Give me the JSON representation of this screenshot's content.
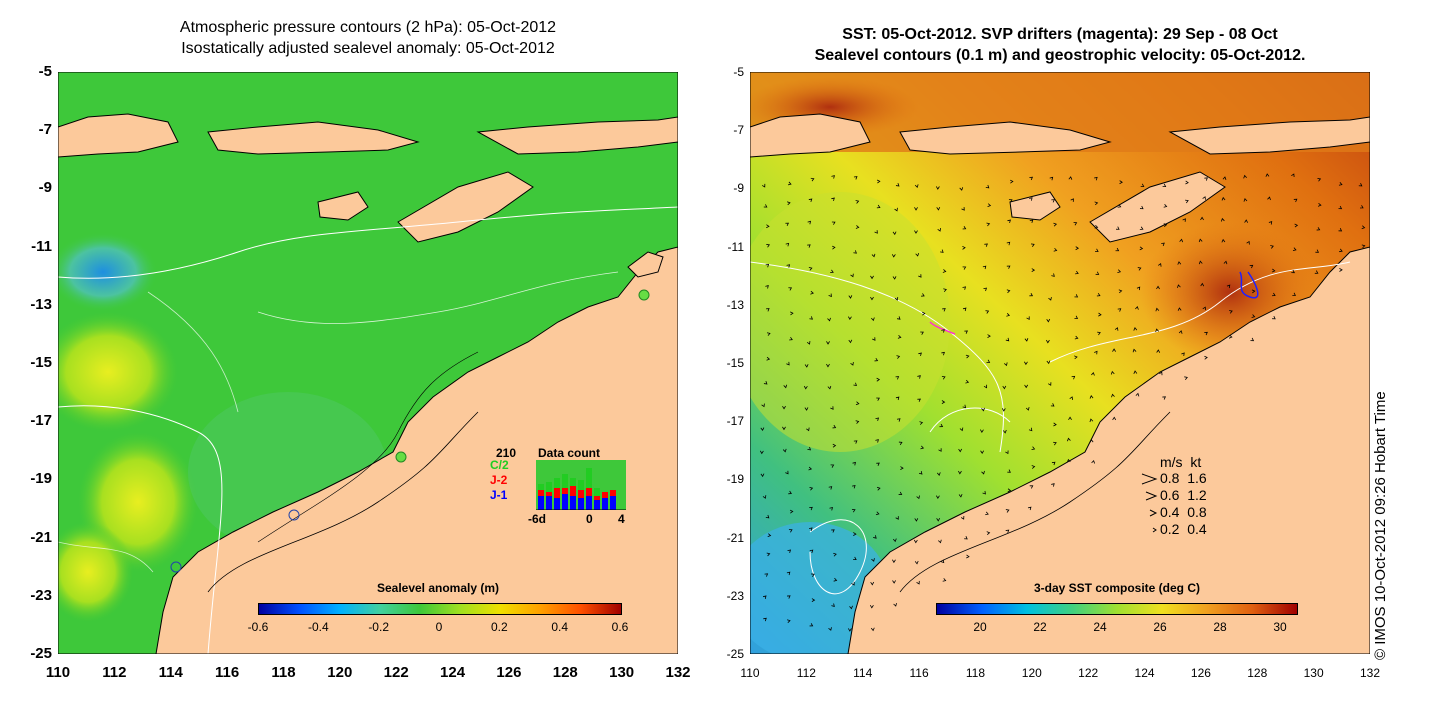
{
  "left_title_1": "Atmospheric pressure contours (2 hPa): 05-Oct-2012",
  "left_title_2": "Isostatically adjusted sealevel anomaly: 05-Oct-2012",
  "right_title_1": "SST: 05-Oct-2012. SVP drifters (magenta): 29 Sep - 08 Oct",
  "right_title_2": "Sealevel contours (0.1 m) and geostrophic velocity: 05-Oct-2012.",
  "y_ticks": [
    "-5",
    "-7",
    "-9",
    "-11",
    "-13",
    "-15",
    "-17",
    "-19",
    "-21",
    "-23",
    "-25"
  ],
  "x_ticks": [
    "110",
    "112",
    "114",
    "116",
    "118",
    "120",
    "122",
    "124",
    "126",
    "128",
    "130",
    "132"
  ],
  "left_colorbar": {
    "label": "Sealevel anomaly (m)",
    "ticks": [
      "-0.6",
      "-0.4",
      "-0.2",
      "0",
      "0.2",
      "0.4",
      "0.6"
    ]
  },
  "right_colorbar": {
    "label": "3-day SST composite (deg C)",
    "ticks": [
      "20",
      "22",
      "24",
      "26",
      "28",
      "30"
    ]
  },
  "data_count": {
    "title": "Data count",
    "max": "210",
    "legend": [
      {
        "name": "C/2",
        "color": "#22cc22"
      },
      {
        "name": "J-2",
        "color": "#ff0000"
      },
      {
        "name": "J-1",
        "color": "#0000ff"
      }
    ],
    "x_ticks": [
      "-6d",
      "0",
      "4"
    ]
  },
  "velocity_legend": {
    "header": "m/s  kt",
    "rows": [
      "0.8  1.6",
      "0.6  1.2",
      "0.4  0.8",
      "0.2  0.4"
    ]
  },
  "credit": "© IMOS 10-Oct-2012 09:26 Hobart Time",
  "colors": {
    "land": "#fcc99b",
    "sla_base": "#33cc33",
    "sst_base": "#e8a020"
  }
}
